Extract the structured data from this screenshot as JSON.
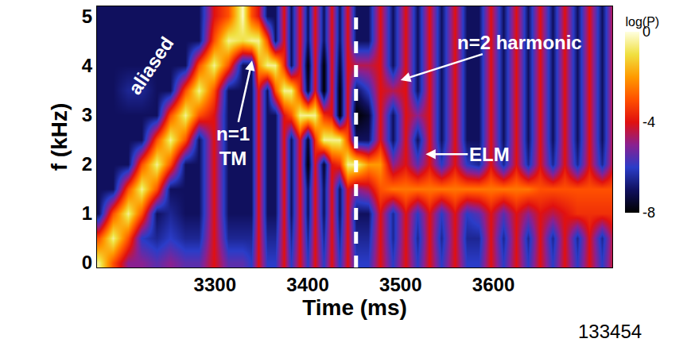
{
  "chart_data": {
    "type": "heatmap",
    "xlabel": "Time (ms)",
    "ylabel": "f (kHz)",
    "grid": false,
    "x": [
      3175,
      3190,
      3206,
      3221,
      3237,
      3252,
      3268,
      3283,
      3299,
      3314,
      3330,
      3339,
      3347,
      3356,
      3365,
      3374,
      3382,
      3391,
      3400,
      3408,
      3417,
      3426,
      3434,
      3443,
      3452,
      3465,
      3478,
      3492,
      3505,
      3518,
      3531,
      3544,
      3558,
      3571,
      3584,
      3597,
      3611,
      3624,
      3637,
      3650,
      3664,
      3677,
      3690,
      3703,
      3717,
      3730
    ],
    "y": [
      0,
      0.5,
      1,
      1.5,
      2,
      2.5,
      3,
      3.5,
      4,
      4.5,
      5
    ],
    "xlim": [
      3173,
      3728
    ],
    "ylim": [
      -0.1,
      5.2
    ],
    "xticks": [
      3300,
      3400,
      3500,
      3600
    ],
    "yticks": [
      0,
      1,
      2,
      3,
      4,
      5
    ],
    "color_title": "log(P)",
    "color_range": [
      -8,
      0
    ],
    "color_ticks": [
      0,
      -4,
      -8
    ],
    "cells": [
      [
        -0.5,
        -3,
        -5,
        -5,
        -5.5,
        -5,
        -5.5,
        -5.5,
        -4,
        -5.5,
        -5.5,
        -6,
        -4,
        -6,
        -6,
        -4,
        -6,
        -4,
        -6,
        -4,
        -6,
        -4,
        -6,
        -4,
        -6,
        -6,
        -4,
        -6,
        -4,
        -6,
        -4,
        -6,
        -4,
        -6,
        -6,
        -4,
        -6,
        -4,
        -6,
        -4,
        -6,
        -4,
        -6,
        -4,
        -6,
        -4
      ],
      [
        -3,
        -0.5,
        -3,
        -6,
        -6.5,
        -6,
        -6.5,
        -6.5,
        -4,
        -6.5,
        -6.5,
        -6.5,
        -4,
        -6.5,
        -6.5,
        -4,
        -6.5,
        -4,
        -6.5,
        -4,
        -6.5,
        -4,
        -6.5,
        -4,
        -6.5,
        -6.5,
        -4,
        -6.5,
        -4,
        -6.5,
        -4,
        -6.5,
        -4,
        -6.5,
        -6.5,
        -4,
        -6.5,
        -4,
        -6.5,
        -4,
        -6.5,
        -4,
        -6.5,
        -4,
        -6.5,
        -4
      ],
      [
        -7,
        -3,
        -0.5,
        -3,
        -7,
        -6.5,
        -7,
        -7,
        -4,
        -7,
        -7,
        -7,
        -4,
        -7,
        -7,
        -4,
        -7,
        -4,
        -7,
        -4,
        -7,
        -4,
        -7,
        -4,
        -7,
        -7,
        -4,
        -6.5,
        -4,
        -6,
        -4,
        -6,
        -4,
        -6,
        -5.5,
        -4,
        -5.5,
        -4,
        -5,
        -4,
        -4.5,
        -4,
        -3.5,
        -3.5,
        -3.5,
        -3.5
      ],
      [
        -7,
        -7,
        -3,
        -0.5,
        -3,
        -7,
        -7,
        -7,
        -4,
        -7,
        -7,
        -7,
        -4,
        -7,
        -7,
        -4,
        -7,
        -4,
        -7,
        -4,
        -7,
        -4,
        -7,
        -4,
        -5,
        -4.5,
        -3,
        -2.5,
        -2.5,
        -2.5,
        -2.5,
        -2.5,
        -2.5,
        -2.5,
        -2.5,
        -2.5,
        -2.5,
        -2.5,
        -2.5,
        -3,
        -3,
        -3,
        -3,
        -3,
        -3,
        -3
      ],
      [
        -7,
        -7,
        -7,
        -3,
        -0.5,
        -3,
        -7,
        -7,
        -4,
        -7,
        -7,
        -7,
        -4,
        -7,
        -7,
        -4,
        -7,
        -4,
        -8,
        -4,
        -7.5,
        -4,
        -3.5,
        -0.5,
        -0.5,
        -2,
        -2,
        -5,
        -4,
        -5.5,
        -4,
        -6,
        -4,
        -6,
        -6.5,
        -4,
        -6.5,
        -4,
        -6.5,
        -4,
        -6.5,
        -4,
        -6.5,
        -4,
        -6.5,
        -4
      ],
      [
        -7,
        -7,
        -7,
        -7,
        -3,
        -0.5,
        -3,
        -7,
        -4,
        -7,
        -7,
        -7,
        -4,
        -7,
        -7,
        -4,
        -7,
        -4,
        -7.5,
        -3.5,
        -0.5,
        -0.5,
        -0.5,
        -3,
        -7,
        -7,
        -4,
        -7,
        -4,
        -7,
        -4,
        -7,
        -4,
        -7,
        -7,
        -4,
        -7,
        -4,
        -7,
        -4,
        -7,
        -4,
        -7,
        -4,
        -7,
        -4
      ],
      [
        -7,
        -7,
        -7,
        -7,
        -7,
        -3,
        -0.5,
        -3,
        -4,
        -7,
        -7,
        -7,
        -4,
        -7,
        -7,
        -4,
        -3,
        -0.5,
        -0.5,
        -0.5,
        -3.5,
        -4,
        -8,
        -4,
        -8,
        -7.5,
        -4,
        -7,
        -4,
        -5,
        -4,
        -7,
        -4,
        -7,
        -7,
        -4,
        -7,
        -4,
        -7,
        -4,
        -7,
        -4,
        -7,
        -4,
        -7,
        -4
      ],
      [
        -7,
        -7,
        -6.5,
        -6.5,
        -7,
        -7,
        -3,
        -0.5,
        -3,
        -7,
        -7,
        -7,
        -4,
        -7,
        -3,
        -0.5,
        -0.5,
        -3.5,
        -7.5,
        -4,
        -8,
        -4,
        -8,
        -4,
        -7,
        -6,
        -4,
        -4.5,
        -4,
        -7,
        -4,
        -7,
        -4,
        -7,
        -7,
        -4,
        -7,
        -4,
        -7,
        -4,
        -7,
        -4,
        -7,
        -4,
        -7,
        -4
      ],
      [
        -7,
        -7,
        -7,
        -7,
        -7,
        -7,
        -7,
        -3,
        -0.5,
        -3,
        -7,
        -7,
        -2,
        -0.5,
        -0.5,
        -3.5,
        -7,
        -4,
        -8,
        -4,
        -8,
        -4,
        -7.5,
        -4,
        -4.5,
        -4.5,
        -4,
        -7,
        -4,
        -7,
        -4,
        -7,
        -4,
        -7,
        -7,
        -4,
        -7,
        -4,
        -7,
        -4,
        -7,
        -4,
        -7,
        -4,
        -7,
        -4
      ],
      [
        -7,
        -7,
        -7,
        -7,
        -7,
        -7,
        -7,
        -7,
        -3,
        -0.5,
        -1,
        -0.5,
        -0.5,
        -3,
        -7,
        -4,
        -7,
        -4,
        -7,
        -4,
        -7,
        -4,
        -7,
        -4,
        -7,
        -7,
        -4,
        -7,
        -4,
        -7,
        -4,
        -7,
        -4,
        -7,
        -7,
        -4,
        -7,
        -4,
        -7,
        -4,
        -7,
        -4,
        -7,
        -4,
        -7,
        -4
      ],
      [
        -7,
        -7,
        -7,
        -7,
        -7,
        -7,
        -7,
        -7,
        -4,
        -3,
        -0.2,
        -3,
        -4,
        -7,
        -7,
        -4,
        -7,
        -4,
        -7,
        -4,
        -7,
        -4,
        -7,
        -4,
        -7,
        -7,
        -4,
        -7,
        -4,
        -7,
        -4,
        -7,
        -4,
        -7,
        -7,
        -4,
        -7,
        -4,
        -7,
        -4,
        -7,
        -4,
        -7,
        -4,
        -7,
        -4
      ]
    ],
    "vline": 3452,
    "annotations": [
      {
        "text": "aliased",
        "x": 3231,
        "y": 4.0
      },
      {
        "text": "n=1 TM",
        "x": 3340,
        "y": 4.1
      },
      {
        "text": "n=2 harmonic",
        "x": 3500,
        "y": 3.7
      },
      {
        "text": "ELM",
        "x": 3527,
        "y": 2.2
      }
    ],
    "footnote": "133454"
  }
}
